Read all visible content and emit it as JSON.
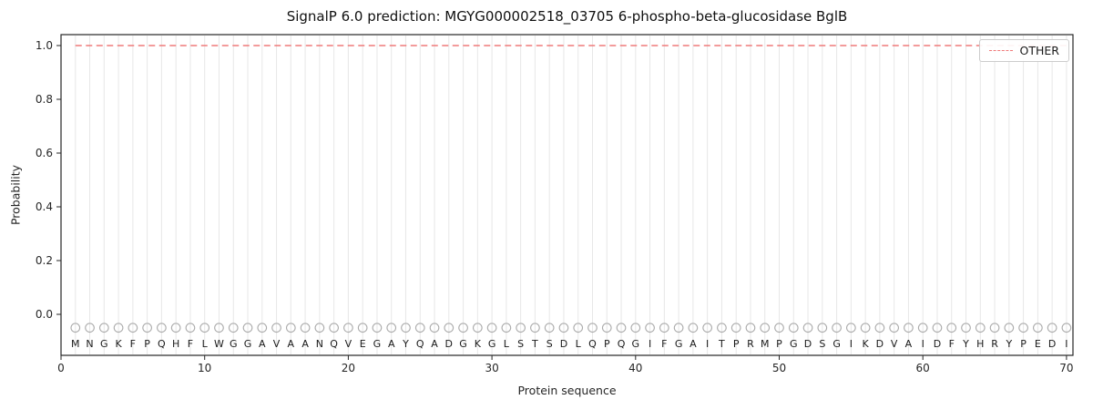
{
  "chart_data": {
    "type": "line",
    "title": "SignalP 6.0 prediction: MGYG000002518_03705 6-phospho-beta-glucosidase BglB",
    "xlabel": "Protein sequence",
    "ylabel": "Probability",
    "xlim": [
      0,
      70.45
    ],
    "ylim": [
      -0.15,
      1.04
    ],
    "xticks": [
      0,
      10,
      20,
      30,
      40,
      50,
      60,
      70
    ],
    "yticks": [
      0.0,
      0.2,
      0.4,
      0.6,
      0.8,
      1.0
    ],
    "grid": "vertical line at each residue position, light gray",
    "legend_position": "upper right",
    "sequence": "MNGKFPQHFLWGGAVAANQVEGAYQADGKGLSTSDLQPQGIFGAITPRMPGDSGIKDVAIDFYHRYPEDI",
    "series": [
      {
        "name": "OTHER",
        "style": "dashed",
        "color": "#ef7a7a",
        "x_range": [
          1,
          70
        ],
        "y_constant": 1.0
      }
    ],
    "marker_row": {
      "shape": "open-circle",
      "color": "#ababab",
      "y": -0.05,
      "x": "each residue 1..70"
    },
    "colors": {
      "axes": "#262626",
      "gridline": "#e7e7e7",
      "letters": "#1a1a1a"
    }
  }
}
